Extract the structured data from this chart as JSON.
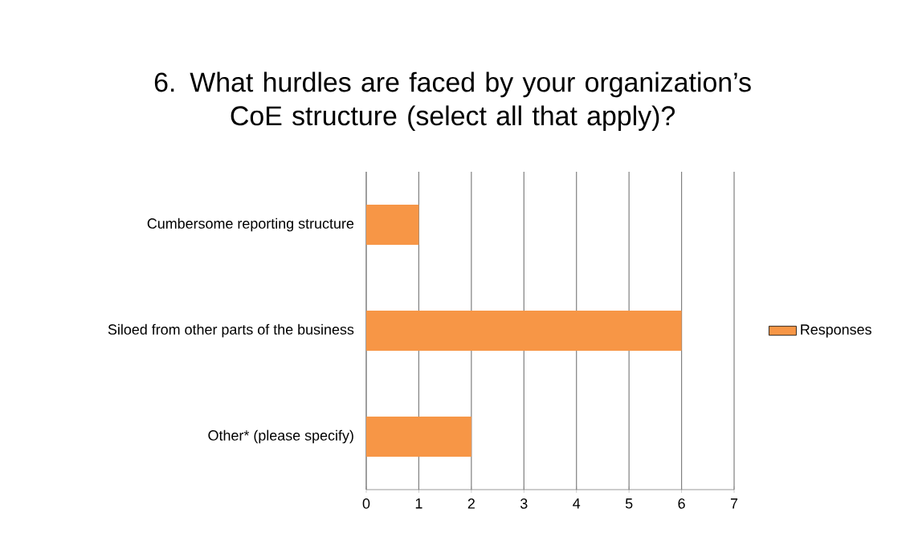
{
  "chart_data": {
    "type": "bar",
    "orientation": "horizontal",
    "title": "6. What hurdles are faced by your organization’s CoE structure (select all that apply)?",
    "categories": [
      "Cumbersome reporting structure",
      "Siloed from other parts of the business",
      "Other* (please specify)"
    ],
    "series": [
      {
        "name": "Responses",
        "color": "#f79646",
        "values": [
          1,
          6,
          2
        ]
      }
    ],
    "xlim": [
      0,
      7
    ],
    "xticks": [
      0,
      1,
      2,
      3,
      4,
      5,
      6,
      7
    ],
    "grid": "x",
    "legend": "right"
  }
}
